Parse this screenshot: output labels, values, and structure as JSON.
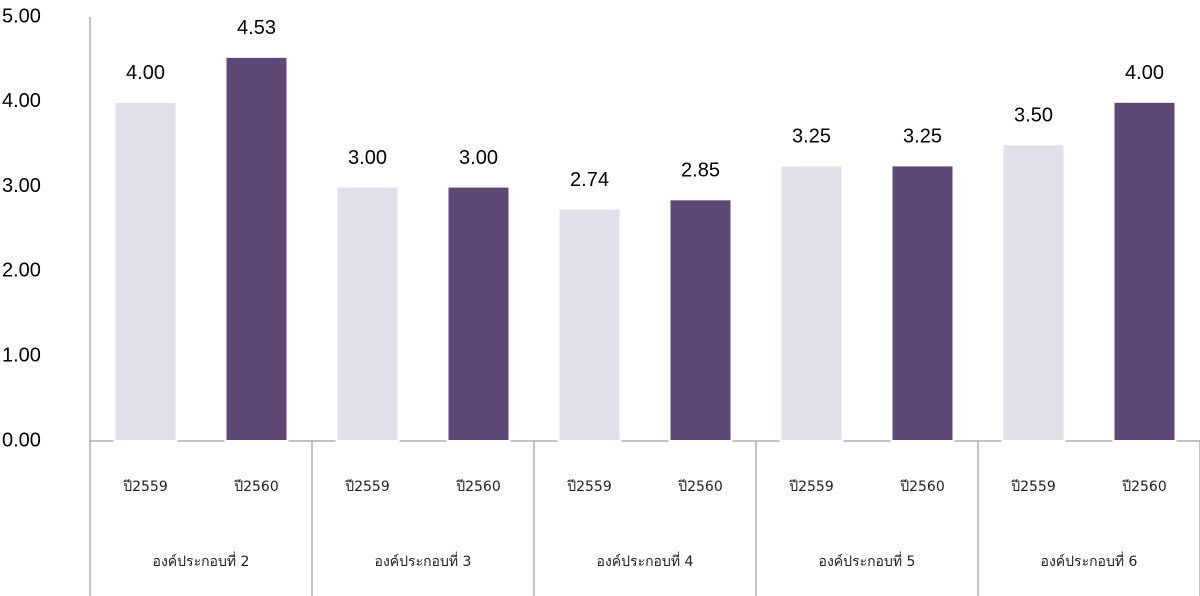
{
  "chart_data": {
    "type": "bar",
    "groups": [
      "องค์ประกอบที่ 2",
      "องค์ประกอบที่ 3",
      "องค์ประกอบที่ 4",
      "องค์ประกอบที่ 5",
      "องค์ประกอบที่ 6"
    ],
    "categories": [
      "ปี2559",
      "ปี2560",
      "ปี2559",
      "ปี2560",
      "ปี2559",
      "ปี2560",
      "ปี2559",
      "ปี2560",
      "ปี2559",
      "ปี2560"
    ],
    "values": [
      4.0,
      4.53,
      3.0,
      3.0,
      2.74,
      2.85,
      3.25,
      3.25,
      3.5,
      4.0
    ],
    "value_labels": [
      "4.00",
      "4.53",
      "3.00",
      "3.00",
      "2.74",
      "2.85",
      "3.25",
      "3.25",
      "3.50",
      "4.00"
    ],
    "colors": [
      "#e3dfea",
      "#5e4877"
    ],
    "ylim": [
      0,
      5
    ],
    "yticks": [
      {
        "value": 0,
        "label": "0.00"
      },
      {
        "value": 1,
        "label": "1.00"
      },
      {
        "value": 2,
        "label": "2.00"
      },
      {
        "value": 3,
        "label": "3.00"
      },
      {
        "value": 4,
        "label": "4.00"
      },
      {
        "value": 5,
        "label": "5.00"
      }
    ],
    "grid": false
  }
}
